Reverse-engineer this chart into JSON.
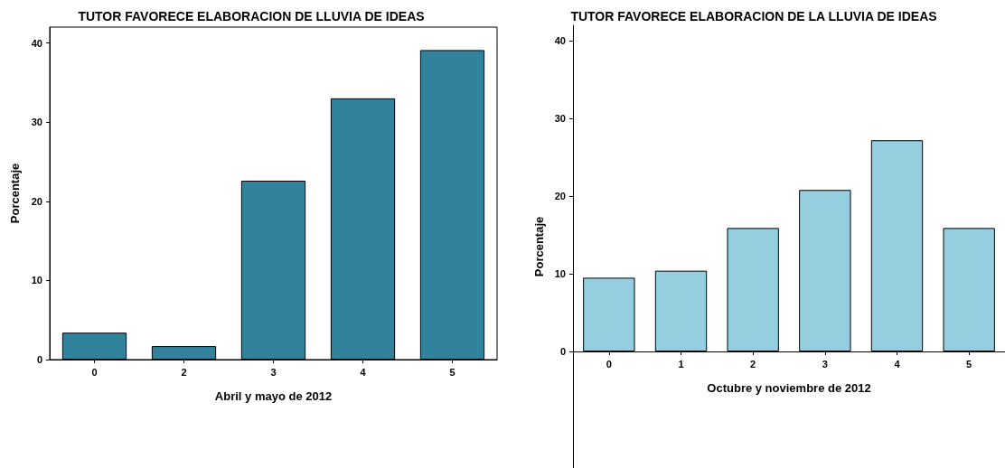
{
  "chart_data": [
    {
      "type": "bar",
      "title": "TUTOR FAVORECE ELABORACION DE LLUVIA DE IDEAS",
      "xlabel": "Abril y mayo de 2012",
      "ylabel": "Porcentaje",
      "categories": [
        "0",
        "2",
        "3",
        "4",
        "5"
      ],
      "values": [
        3.4,
        1.7,
        22.6,
        33.0,
        39.1
      ],
      "color": "#30839b",
      "ylim": [
        0,
        42
      ],
      "yticks": [
        0,
        10,
        20,
        30,
        40
      ]
    },
    {
      "type": "bar",
      "title": "TUTOR FAVORECE ELABORACION DE LA LLUVIA DE IDEAS",
      "xlabel": "Octubre y noviembre de 2012",
      "ylabel": "Porcentaje",
      "categories": [
        "0",
        "1",
        "2",
        "3",
        "4",
        "5"
      ],
      "values": [
        9.5,
        10.4,
        15.9,
        20.8,
        27.2,
        15.9
      ],
      "color": "#95cedf",
      "ylim": [
        -15,
        42
      ],
      "yticks": [
        0,
        10,
        20,
        30,
        40
      ]
    }
  ]
}
